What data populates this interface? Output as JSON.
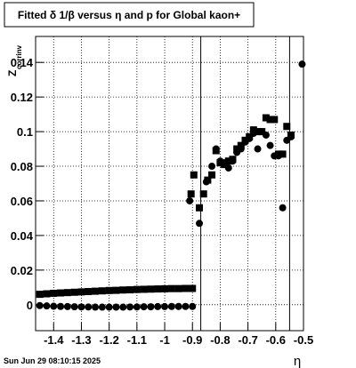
{
  "chart_data": {
    "type": "scatter",
    "title": "Fitted δ 1/β versus η and p for Global kaon+",
    "xlabel": "η",
    "ylabel": "Z",
    "ylabel_sub": "corrinv",
    "footer": "Sun Jun 29 08:10:15 2025",
    "xlim": [
      -1.465,
      -0.5
    ],
    "ylim": [
      -0.015,
      0.155
    ],
    "xticks": [
      -1.4,
      -1.3,
      -1.2,
      -1.1,
      -1,
      -0.9,
      -0.8,
      -0.7,
      -0.6,
      -0.5
    ],
    "yticks": [
      0,
      0.02,
      0.04,
      0.06,
      0.08,
      0.1,
      0.12,
      0.14
    ],
    "grid": true,
    "vlines": [
      -0.87,
      -0.55
    ],
    "series": [
      {
        "marker": "square",
        "color": "#000000",
        "x": [
          -1.45,
          -1.425,
          -1.4,
          -1.375,
          -1.35,
          -1.325,
          -1.3,
          -1.275,
          -1.25,
          -1.225,
          -1.2,
          -1.175,
          -1.15,
          -1.125,
          -1.1,
          -1.075,
          -1.05,
          -1.025,
          -1,
          -0.975,
          -0.95,
          -0.925,
          -0.9,
          -0.905,
          -0.895,
          -0.875,
          -0.86,
          -0.845,
          -0.83,
          -0.815,
          -0.8,
          -0.785,
          -0.77,
          -0.755,
          -0.74,
          -0.725,
          -0.71,
          -0.695,
          -0.68,
          -0.665,
          -0.65,
          -0.635,
          -0.62,
          -0.605,
          -0.59,
          -0.575,
          -0.56,
          -0.545
        ],
        "values": [
          0.006,
          0.0063,
          0.0066,
          0.0068,
          0.007,
          0.0072,
          0.0074,
          0.0076,
          0.0078,
          0.008,
          0.0082,
          0.0083,
          0.0085,
          0.0086,
          0.0088,
          0.0089,
          0.009,
          0.0091,
          0.0092,
          0.0093,
          0.0093,
          0.0094,
          0.0094,
          0.064,
          0.075,
          0.056,
          0.064,
          0.072,
          0.075,
          0.089,
          0.082,
          0.081,
          0.083,
          0.084,
          0.09,
          0.092,
          0.095,
          0.097,
          0.101,
          0.1,
          0.1,
          0.108,
          0.107,
          0.107,
          0.087,
          0.087,
          0.103,
          0.098
        ]
      },
      {
        "marker": "circle",
        "color": "#000000",
        "x": [
          -1.45,
          -1.425,
          -1.4,
          -1.375,
          -1.35,
          -1.325,
          -1.3,
          -1.275,
          -1.25,
          -1.225,
          -1.2,
          -1.175,
          -1.15,
          -1.125,
          -1.1,
          -1.075,
          -1.05,
          -1.025,
          -1,
          -0.975,
          -0.95,
          -0.925,
          -0.9,
          -0.91,
          -0.875,
          -0.85,
          -0.83,
          -0.815,
          -0.8,
          -0.785,
          -0.77,
          -0.755,
          -0.74,
          -0.725,
          -0.71,
          -0.695,
          -0.68,
          -0.665,
          -0.65,
          -0.635,
          -0.62,
          -0.605,
          -0.59,
          -0.575,
          -0.56,
          -0.545,
          -0.505
        ],
        "values": [
          -0.0005,
          -0.0007,
          -0.0009,
          -0.001,
          -0.0011,
          -0.0012,
          -0.0013,
          -0.0013,
          -0.0014,
          -0.0014,
          -0.0014,
          -0.0014,
          -0.0014,
          -0.0013,
          -0.0013,
          -0.0012,
          -0.0012,
          -0.0011,
          -0.0011,
          -0.001,
          -0.001,
          -0.001,
          -0.001,
          0.06,
          0.047,
          0.071,
          0.08,
          0.09,
          0.083,
          0.082,
          0.079,
          0.083,
          0.088,
          0.09,
          0.094,
          0.096,
          0.099,
          0.09,
          0.1,
          0.098,
          0.092,
          0.086,
          0.086,
          0.056,
          0.095,
          0.097,
          0.139
        ]
      }
    ]
  }
}
